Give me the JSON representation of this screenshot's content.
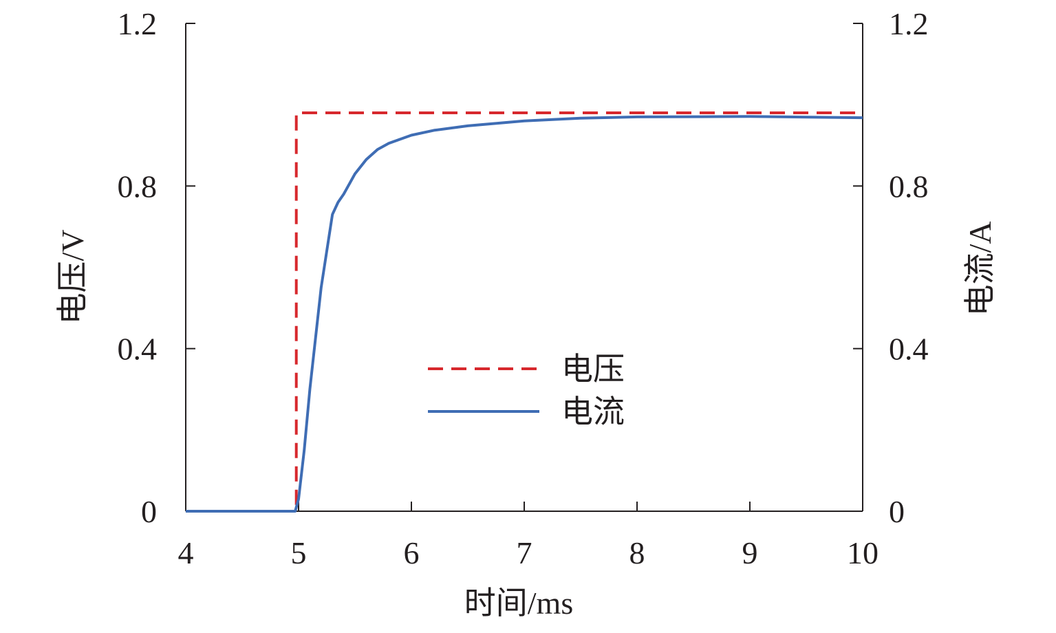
{
  "chart_data": {
    "type": "line",
    "xlabel": "时间/ms",
    "ylabel_left": "电压/V",
    "ylabel_right": "电流/A",
    "xlim": [
      4,
      10
    ],
    "ylim_left": [
      0,
      1.2
    ],
    "ylim_right": [
      0,
      1.2
    ],
    "x_ticks": [
      4,
      5,
      6,
      7,
      8,
      9,
      10
    ],
    "y_ticks_left": [
      0,
      0.4,
      0.8,
      1.2
    ],
    "y_ticks_right": [
      0,
      0.4,
      0.8,
      1.2
    ],
    "grid": false,
    "legend_position": "center",
    "series": [
      {
        "name": "电压",
        "axis": "left",
        "style": "dashed",
        "color": "#d7282d",
        "points": [
          [
            4.0,
            0.0
          ],
          [
            4.98,
            0.0
          ],
          [
            4.98,
            0.98
          ],
          [
            10.0,
            0.98
          ]
        ]
      },
      {
        "name": "电流",
        "axis": "right",
        "style": "solid",
        "color": "#3f6db4",
        "points": [
          [
            4.0,
            0.0
          ],
          [
            4.97,
            0.0
          ],
          [
            5.0,
            0.03
          ],
          [
            5.05,
            0.15
          ],
          [
            5.1,
            0.3
          ],
          [
            5.2,
            0.55
          ],
          [
            5.3,
            0.73
          ],
          [
            5.35,
            0.76
          ],
          [
            5.4,
            0.78
          ],
          [
            5.5,
            0.83
          ],
          [
            5.6,
            0.865
          ],
          [
            5.7,
            0.89
          ],
          [
            5.8,
            0.905
          ],
          [
            6.0,
            0.925
          ],
          [
            6.2,
            0.937
          ],
          [
            6.5,
            0.948
          ],
          [
            7.0,
            0.96
          ],
          [
            7.5,
            0.967
          ],
          [
            8.0,
            0.97
          ],
          [
            9.0,
            0.971
          ],
          [
            10.0,
            0.968
          ]
        ]
      }
    ]
  }
}
